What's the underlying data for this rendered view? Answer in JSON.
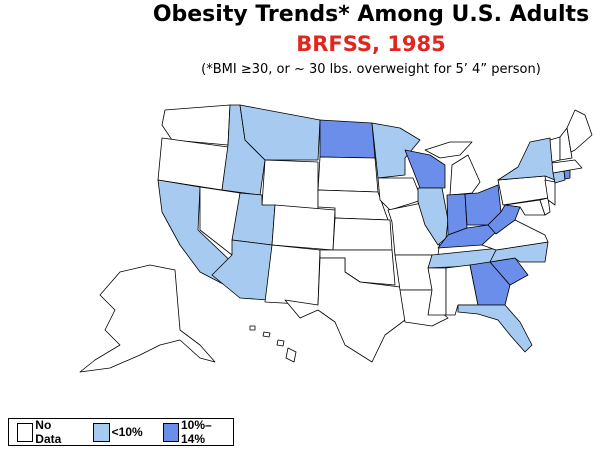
{
  "title": "Obesity Trends*  Among U.S. Adults",
  "subtitle": "BRFSS, 1985",
  "footnote": "(*BMI ≥30, or ~ 30 lbs. overweight for 5’ 4” person)",
  "colors": {
    "title": "#000000",
    "subtitle": "#e0261f",
    "no_data": "#ffffff",
    "lt10": "#a6caf0",
    "10to14": "#6a8eea"
  },
  "legend": [
    {
      "key": "no_data",
      "label": "No Data"
    },
    {
      "key": "lt10",
      "label": "<10%"
    },
    {
      "key": "10to14",
      "label": "10%–14%"
    }
  ],
  "states": {
    "WA": "no_data",
    "OR": "no_data",
    "CA": "lt10",
    "NV": "no_data",
    "ID": "lt10",
    "MT": "lt10",
    "WY": "no_data",
    "UT": "lt10",
    "AZ": "lt10",
    "CO": "no_data",
    "NM": "no_data",
    "ND": "10to14",
    "SD": "no_data",
    "NE": "no_data",
    "KS": "no_data",
    "OK": "no_data",
    "TX": "no_data",
    "MN": "lt10",
    "IA": "no_data",
    "MO": "no_data",
    "AR": "no_data",
    "LA": "no_data",
    "WI": "10to14",
    "IL": "lt10",
    "MI": "no_data",
    "IN": "10to14",
    "OH": "10to14",
    "KY": "10to14",
    "TN": "lt10",
    "MS": "no_data",
    "AL": "no_data",
    "GA": "10to14",
    "FL": "lt10",
    "SC": "10to14",
    "NC": "lt10",
    "VA": "no_data",
    "WV": "10to14",
    "PA": "no_data",
    "NY": "lt10",
    "MD": "no_data",
    "DE": "no_data",
    "NJ": "no_data",
    "CT": "lt10",
    "RI": "10to14",
    "MA": "no_data",
    "VT": "no_data",
    "NH": "no_data",
    "ME": "no_data",
    "AK": "no_data",
    "HI": "no_data"
  }
}
